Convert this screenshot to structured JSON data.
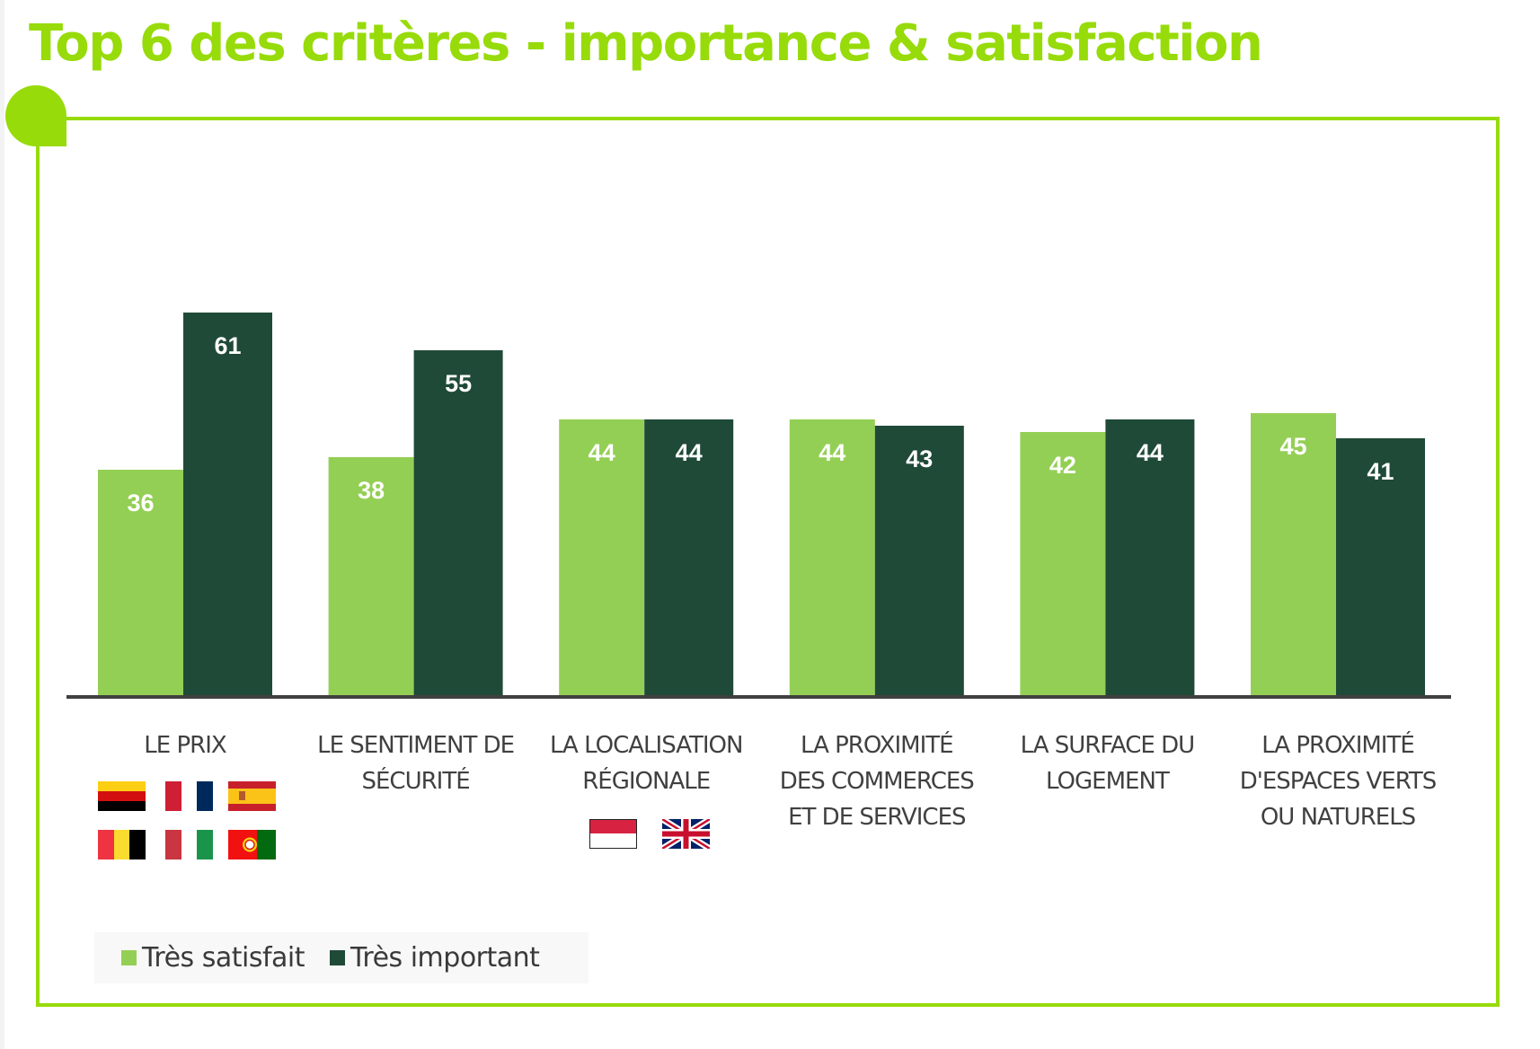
{
  "title": "Top 6 des critères - importance & satisfaction",
  "colors": {
    "accent": "#97DB0A",
    "series_light": "#94CF55",
    "series_dark": "#1F4A37",
    "axis": "#404040",
    "label_text": "#404040"
  },
  "chart_data": {
    "type": "bar",
    "title": "Top 6 des critères - importance & satisfaction",
    "xlabel": "",
    "ylabel": "",
    "ylim": [
      0,
      65
    ],
    "grid": false,
    "legend_position": "bottom-left",
    "categories": [
      [
        "LE PRIX"
      ],
      [
        "LE SENTIMENT DE",
        "SÉCURITÉ"
      ],
      [
        "LA LOCALISATION",
        "RÉGIONALE"
      ],
      [
        "LA PROXIMITÉ",
        "DES COMMERCES",
        "ET DE SERVICES"
      ],
      [
        "LA SURFACE DU",
        "LOGEMENT"
      ],
      [
        "LA PROXIMITÉ",
        "D'ESPACES VERTS",
        "OU NATURELS"
      ]
    ],
    "series": [
      {
        "name": "Très satisfait",
        "color": "#94CF55",
        "values": [
          36,
          38,
          44,
          44,
          42,
          45
        ]
      },
      {
        "name": "Très important",
        "color": "#1F4A37",
        "values": [
          61,
          55,
          44,
          43,
          44,
          41
        ]
      }
    ],
    "category_flags": [
      [
        "germany-flag",
        "france-flag",
        "spain-flag",
        "belgium-flag",
        "italy-flag",
        "portugal-flag"
      ],
      [],
      [
        "monaco-flag",
        "united-kingdom-flag"
      ],
      [],
      [],
      []
    ]
  },
  "legend": {
    "items": [
      {
        "label": "Très satisfait",
        "color": "#94CF55"
      },
      {
        "label": "Très important",
        "color": "#1F4A37"
      }
    ]
  }
}
